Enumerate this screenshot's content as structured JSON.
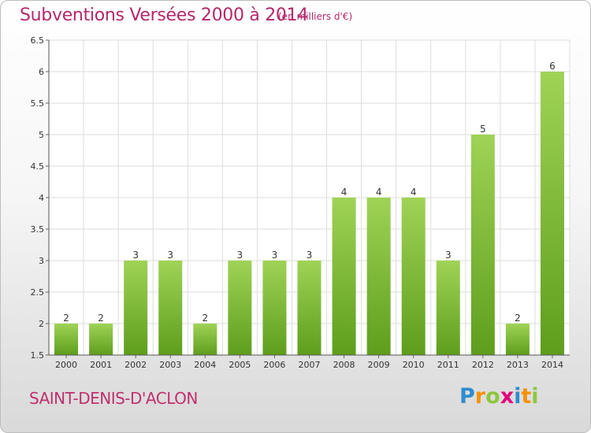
{
  "header": {
    "title": "Subventions Versées 2000 à 2014",
    "subtitle": "(en milliers d'€)"
  },
  "commune": "SAINT-DENIS-D'ACLON",
  "logo": {
    "letters": [
      "P",
      "r",
      "o",
      "x",
      "i",
      "t",
      "i"
    ],
    "colors": [
      "#2e8ccf",
      "#f39200",
      "#8dc63f",
      "#e4007c",
      "#2e8ccf",
      "#f39200",
      "#8dc63f"
    ]
  },
  "chart_data": {
    "type": "bar",
    "categories": [
      "2000",
      "2001",
      "2002",
      "2003",
      "2004",
      "2005",
      "2006",
      "2007",
      "2008",
      "2009",
      "2010",
      "2011",
      "2012",
      "2013",
      "2014"
    ],
    "values": [
      2,
      2,
      3,
      3,
      2,
      3,
      3,
      3,
      4,
      4,
      4,
      3,
      5,
      2,
      6
    ],
    "ylim": [
      1.5,
      6.5
    ],
    "yticks": [
      "1.5",
      "2",
      "2.5",
      "3",
      "3.5",
      "4",
      "4.5",
      "5",
      "5.5",
      "6",
      "6.5"
    ],
    "grid": true,
    "bar_color": "#7cb82f"
  }
}
